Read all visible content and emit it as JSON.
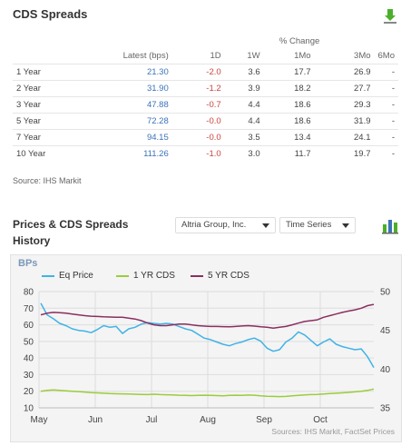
{
  "header": {
    "title": "CDS Spreads"
  },
  "table": {
    "pct_change_label": "% Change",
    "columns": [
      "",
      "Latest (bps)",
      "1D",
      "1W",
      "1Mo",
      "3Mo",
      "6Mo"
    ],
    "rows": [
      [
        "1 Year",
        "21.30",
        "-2.0",
        "3.6",
        "17.7",
        "26.9",
        "-"
      ],
      [
        "2 Year",
        "31.90",
        "-1.2",
        "3.9",
        "18.2",
        "27.7",
        "-"
      ],
      [
        "3 Year",
        "47.88",
        "-0.7",
        "4.4",
        "18.6",
        "29.3",
        "-"
      ],
      [
        "5 Year",
        "72.28",
        "-0.0",
        "4.4",
        "18.6",
        "31.9",
        "-"
      ],
      [
        "7 Year",
        "94.15",
        "-0.0",
        "3.5",
        "13.4",
        "24.1",
        "-"
      ],
      [
        "10 Year",
        "111.26",
        "-1.0",
        "3.0",
        "11.7",
        "19.7",
        "-"
      ]
    ],
    "source": "Source: IHS Markit"
  },
  "history": {
    "title_line1": "Prices & CDS Spreads",
    "title_line2": "History",
    "company_select": "Altria Group, Inc.",
    "mode_select": "Time Series"
  },
  "colors": {
    "eq_price": "#3fb3e6",
    "cds1": "#9ccc3c",
    "cds5": "#8a2f60",
    "latest": "#3b73b9",
    "negative": "#c9463d"
  },
  "icons": {
    "download": "download-icon",
    "chart": "bar-chart-icon"
  },
  "chart_data": {
    "type": "line",
    "unit_label": "BPs",
    "legend": [
      "Eq Price",
      "1 YR CDS",
      "5 YR CDS"
    ],
    "x_ticks": [
      "May",
      "Jun",
      "Jul",
      "Aug",
      "Sep",
      "Oct"
    ],
    "y_left_ticks": [
      "10",
      "20",
      "30",
      "40",
      "50",
      "60",
      "70",
      "80"
    ],
    "y_right_ticks": [
      "35",
      "40",
      "45",
      "50"
    ],
    "ylim_left": [
      10,
      80
    ],
    "ylim_right": [
      35,
      50
    ],
    "source": "Sources: IHS Markit, FactSet Prices",
    "series": [
      {
        "name": "Eq Price",
        "axis": "right",
        "values": [
          48.5,
          47.0,
          46.5,
          45.9,
          45.6,
          45.2,
          45.0,
          44.9,
          44.7,
          45.1,
          45.6,
          45.4,
          45.5,
          44.6,
          45.2,
          45.4,
          45.8,
          46.0,
          45.9,
          45.8,
          45.9,
          45.8,
          45.5,
          45.2,
          45.0,
          44.5,
          44.0,
          43.8,
          43.5,
          43.2,
          43.0,
          43.3,
          43.5,
          43.8,
          44.0,
          43.6,
          42.7,
          42.3,
          42.5,
          43.5,
          44.0,
          44.8,
          44.4,
          43.7,
          43.0,
          43.5,
          43.9,
          43.2,
          42.9,
          42.7,
          42.5,
          42.6,
          41.6,
          40.2
        ]
      },
      {
        "name": "1 YR CDS",
        "axis": "left",
        "values": [
          20.0,
          20.5,
          20.8,
          20.5,
          20.3,
          20.0,
          19.8,
          19.5,
          19.2,
          19.0,
          18.8,
          18.6,
          18.5,
          18.4,
          18.3,
          18.2,
          18.1,
          18.0,
          18.2,
          18.0,
          17.9,
          17.8,
          17.6,
          17.5,
          17.4,
          17.5,
          17.6,
          17.5,
          17.4,
          17.3,
          17.5,
          17.6,
          17.5,
          17.7,
          17.6,
          17.2,
          17.0,
          16.9,
          16.8,
          16.9,
          17.2,
          17.5,
          17.8,
          18.0,
          18.1,
          18.3,
          18.6,
          18.8,
          19.0,
          19.3,
          19.6,
          20.0,
          20.5,
          21.3
        ]
      },
      {
        "name": "5 YR CDS",
        "axis": "left",
        "values": [
          66.0,
          67.0,
          67.5,
          67.3,
          67.0,
          66.5,
          66.0,
          65.5,
          65.2,
          65.0,
          64.8,
          64.7,
          64.5,
          64.5,
          64.0,
          63.5,
          62.5,
          61.0,
          60.0,
          59.5,
          59.5,
          60.0,
          60.5,
          60.5,
          60.0,
          59.5,
          59.2,
          59.0,
          59.0,
          58.9,
          58.8,
          59.0,
          59.3,
          59.5,
          59.2,
          58.8,
          58.5,
          58.0,
          58.5,
          59.0,
          60.0,
          61.0,
          62.0,
          62.5,
          63.0,
          64.5,
          65.5,
          66.5,
          67.5,
          68.3,
          69.0,
          70.0,
          71.5,
          72.3
        ]
      }
    ]
  }
}
